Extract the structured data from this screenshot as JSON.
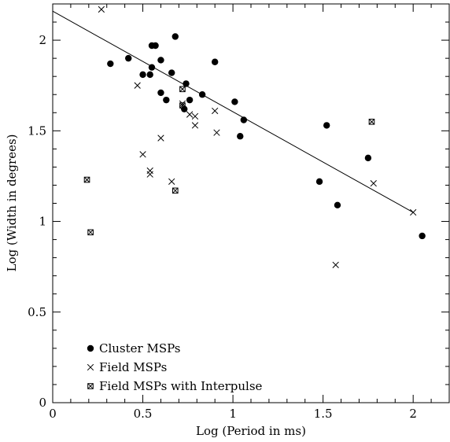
{
  "chart_data": {
    "type": "scatter",
    "xlabel": "Log (Period in ms)",
    "ylabel": "Log (Width in degrees)",
    "xlim": [
      0,
      2.2
    ],
    "ylim": [
      0,
      2.2
    ],
    "x_ticks": [
      {
        "value": 0,
        "label": "0"
      },
      {
        "value": 0.5,
        "label": "0.5"
      },
      {
        "value": 1,
        "label": "1"
      },
      {
        "value": 1.5,
        "label": "1.5"
      },
      {
        "value": 2,
        "label": "2"
      }
    ],
    "y_ticks": [
      {
        "value": 0,
        "label": "0"
      },
      {
        "value": 0.5,
        "label": "0.5"
      },
      {
        "value": 1,
        "label": "1"
      },
      {
        "value": 1.5,
        "label": "1.5"
      },
      {
        "value": 2,
        "label": "2"
      }
    ],
    "fit_line": {
      "x": [
        0,
        2.0
      ],
      "y": [
        2.16,
        1.05
      ]
    },
    "legend_position": "bottom-left",
    "series": [
      {
        "name": "Cluster MSPs",
        "marker": "filled-circle",
        "points": [
          [
            0.32,
            1.87
          ],
          [
            0.42,
            1.9
          ],
          [
            0.5,
            1.81
          ],
          [
            0.54,
            1.81
          ],
          [
            0.55,
            1.85
          ],
          [
            0.55,
            1.97
          ],
          [
            0.57,
            1.97
          ],
          [
            0.6,
            1.89
          ],
          [
            0.6,
            1.71
          ],
          [
            0.63,
            1.67
          ],
          [
            0.66,
            1.82
          ],
          [
            0.68,
            2.02
          ],
          [
            0.73,
            1.62
          ],
          [
            0.74,
            1.76
          ],
          [
            0.76,
            1.67
          ],
          [
            0.83,
            1.7
          ],
          [
            0.9,
            1.88
          ],
          [
            1.01,
            1.66
          ],
          [
            1.04,
            1.47
          ],
          [
            1.06,
            1.56
          ],
          [
            1.48,
            1.22
          ],
          [
            1.52,
            1.53
          ],
          [
            1.58,
            1.09
          ],
          [
            1.75,
            1.35
          ],
          [
            2.05,
            0.92
          ]
        ]
      },
      {
        "name": "Field MSPs",
        "marker": "cross",
        "points": [
          [
            0.27,
            2.17
          ],
          [
            0.47,
            1.75
          ],
          [
            0.5,
            1.37
          ],
          [
            0.54,
            1.28
          ],
          [
            0.54,
            1.26
          ],
          [
            0.6,
            1.46
          ],
          [
            0.66,
            1.22
          ],
          [
            0.72,
            1.65
          ],
          [
            0.76,
            1.59
          ],
          [
            0.79,
            1.58
          ],
          [
            0.79,
            1.53
          ],
          [
            0.9,
            1.61
          ],
          [
            0.91,
            1.49
          ],
          [
            1.57,
            0.76
          ],
          [
            1.78,
            1.21
          ],
          [
            2.0,
            1.05
          ]
        ]
      },
      {
        "name": "Field MSPs with Interpulse",
        "marker": "boxed-cross",
        "points": [
          [
            0.19,
            1.23
          ],
          [
            0.21,
            0.94
          ],
          [
            0.68,
            1.17
          ],
          [
            0.72,
            1.73
          ],
          [
            0.72,
            1.64
          ],
          [
            1.77,
            1.55
          ]
        ]
      }
    ]
  }
}
